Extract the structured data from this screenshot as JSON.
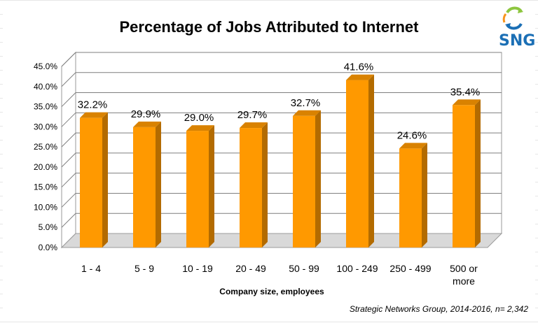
{
  "logo": {
    "text": "SNG",
    "color": "#1b6fb5"
  },
  "chart_data": {
    "type": "bar",
    "title": "Percentage of Jobs Attributed to Internet",
    "xlabel": "Company size, employees",
    "ylabel": "",
    "source_note": "Strategic Networks Group, 2014-2016, n= 2,342",
    "categories": [
      "1 - 4",
      "5 - 9",
      "10 - 19",
      "20 - 49",
      "50 - 99",
      "100 - 249",
      "250 - 499",
      "500 or more"
    ],
    "values": [
      32.2,
      29.9,
      29.0,
      29.7,
      32.7,
      41.6,
      24.6,
      35.4
    ],
    "data_labels": [
      "32.2%",
      "29.9%",
      "29.0%",
      "29.7%",
      "32.7%",
      "41.6%",
      "24.6%",
      "35.4%"
    ],
    "y_ticks": [
      "0.0%",
      "5.0%",
      "10.0%",
      "15.0%",
      "20.0%",
      "25.0%",
      "30.0%",
      "35.0%",
      "40.0%",
      "45.0%"
    ],
    "ylim": [
      0,
      45
    ],
    "grid": true,
    "legend": "none",
    "bar_color": "#ff9900",
    "bar_side_color": "#b36b00",
    "bar_top_color": "#d98200"
  }
}
